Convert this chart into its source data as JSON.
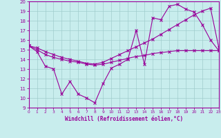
{
  "xlabel": "Windchill (Refroidissement éolien,°C)",
  "xlim": [
    0,
    23
  ],
  "ylim": [
    9,
    20
  ],
  "xticks": [
    0,
    1,
    2,
    3,
    4,
    5,
    6,
    7,
    8,
    9,
    10,
    11,
    12,
    13,
    14,
    15,
    16,
    17,
    18,
    19,
    20,
    21,
    22,
    23
  ],
  "yticks": [
    9,
    10,
    11,
    12,
    13,
    14,
    15,
    16,
    17,
    18,
    19,
    20
  ],
  "bg_color": "#c8eded",
  "line_color": "#990099",
  "grid_color": "#a0cccc",
  "series": [
    {
      "x": [
        0,
        1,
        2,
        3,
        4,
        5,
        6,
        7,
        8,
        9,
        10,
        11,
        12,
        13,
        14,
        15,
        16,
        17,
        18,
        19,
        20,
        21,
        22,
        23
      ],
      "y": [
        15.4,
        14.8,
        13.3,
        13.0,
        10.4,
        11.7,
        10.4,
        10.0,
        9.5,
        11.5,
        13.1,
        13.5,
        14.0,
        17.0,
        13.5,
        18.3,
        18.1,
        19.5,
        19.7,
        19.2,
        18.9,
        17.6,
        16.0,
        14.9
      ]
    },
    {
      "x": [
        0,
        1,
        2,
        3,
        4,
        5,
        6,
        7,
        8,
        9,
        10,
        11,
        12,
        13,
        14,
        15,
        16,
        17,
        18,
        19,
        20,
        21,
        22,
        23
      ],
      "y": [
        15.4,
        15.0,
        14.5,
        14.2,
        14.0,
        13.8,
        13.7,
        13.5,
        13.4,
        13.5,
        13.7,
        13.9,
        14.1,
        14.3,
        14.4,
        14.6,
        14.7,
        14.8,
        14.9,
        14.9,
        14.9,
        14.9,
        14.9,
        14.9
      ]
    },
    {
      "x": [
        0,
        1,
        2,
        3,
        4,
        5,
        6,
        7,
        8,
        9,
        10,
        11,
        12,
        13,
        14,
        15,
        16,
        17,
        18,
        19,
        20,
        21,
        22,
        23
      ],
      "y": [
        15.4,
        15.2,
        14.8,
        14.5,
        14.2,
        14.0,
        13.8,
        13.6,
        13.5,
        13.7,
        14.1,
        14.5,
        14.9,
        15.3,
        15.7,
        16.1,
        16.6,
        17.1,
        17.6,
        18.1,
        18.6,
        19.0,
        19.3,
        15.2
      ]
    }
  ]
}
